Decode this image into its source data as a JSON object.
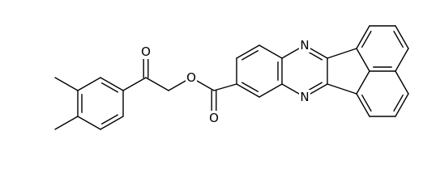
{
  "atoms": [
    "O",
    "O",
    "O",
    "N",
    "N"
  ]
}
